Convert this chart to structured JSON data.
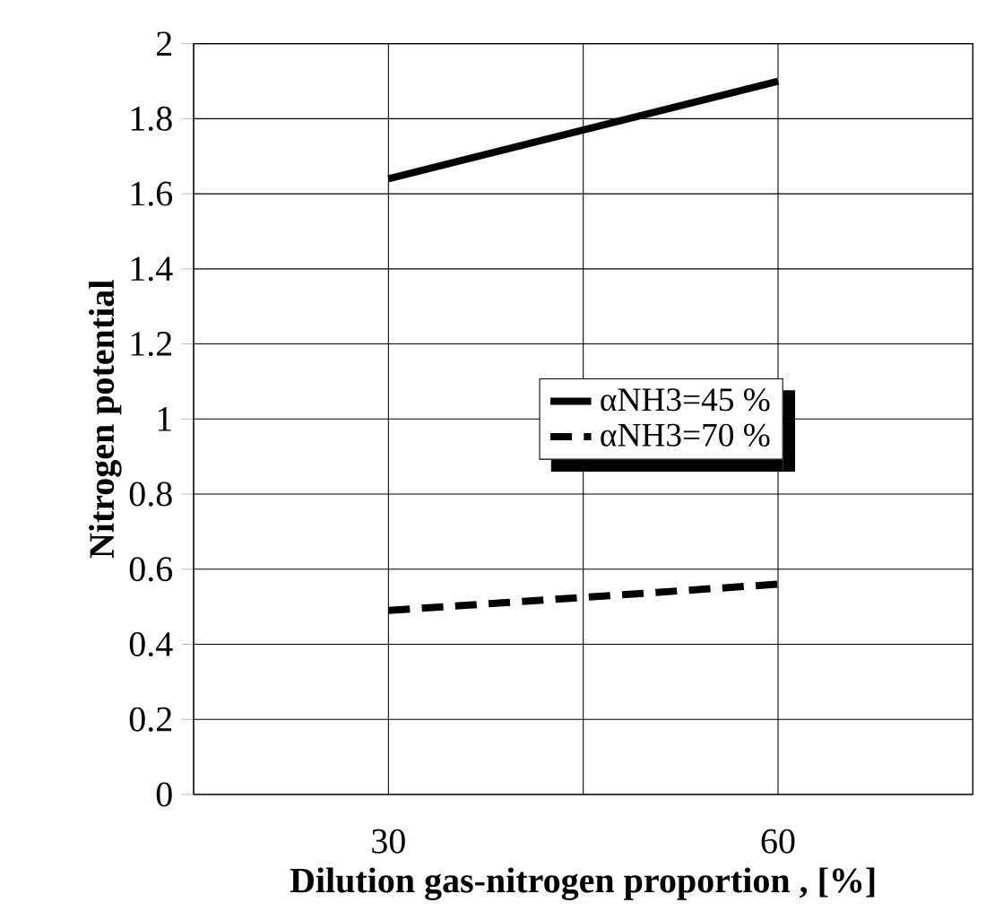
{
  "chart_data": {
    "type": "line",
    "xlabel": "Dilution gas-nitrogen  proportion , [%]",
    "ylabel": "Nitrogen potential",
    "categories": [
      "30",
      "60"
    ],
    "series": [
      {
        "name": "αNH3=45 %",
        "color": "#000000",
        "line_style": "solid",
        "values": [
          1.64,
          1.9
        ]
      },
      {
        "name": "αNH3=70 %",
        "color": "#000000",
        "line_style": "dashed",
        "values": [
          0.49,
          0.56
        ]
      }
    ],
    "ylim": [
      0,
      2
    ],
    "yticks": [
      0,
      0.2,
      0.4,
      0.6,
      0.8,
      1,
      1.2,
      1.4,
      1.6,
      1.8,
      2
    ],
    "grid": true,
    "legend": "center",
    "marker": "none"
  }
}
